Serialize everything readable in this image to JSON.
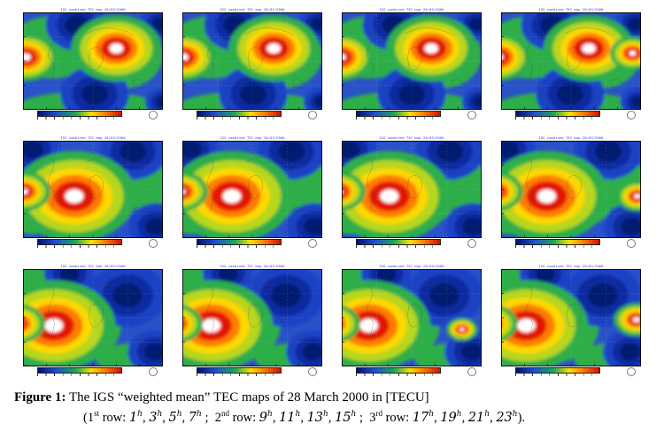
{
  "page": {
    "background": "#ffffff"
  },
  "figure": {
    "panel_header": "IGS combined TEC map  28/03/2000",
    "caption": {
      "label": "Figure 1:",
      "text": " The IGS “weighted mean” TEC maps of 28 March 2000 in [TECU]",
      "row_word": "row:",
      "hour_unit": "h",
      "rows": [
        {
          "ordinal": "1",
          "suffix": "st",
          "hours": [
            "1",
            "3",
            "5",
            "7"
          ],
          "terminator": ";"
        },
        {
          "ordinal": "2",
          "suffix": "nd",
          "hours": [
            "9",
            "11",
            "13",
            "15"
          ],
          "terminator": ";"
        },
        {
          "ordinal": "3",
          "suffix": "rd",
          "hours": [
            "17",
            "19",
            "21",
            "23"
          ],
          "terminator": "."
        }
      ]
    }
  },
  "chart_data": {
    "type": "heatmap",
    "title": "IGS weighted mean TEC maps of 28 March 2000",
    "unit": "TECU",
    "layout": {
      "rows": 3,
      "cols": 4
    },
    "panel_hours_UT": [
      1,
      3,
      5,
      7,
      9,
      11,
      13,
      15,
      17,
      19,
      21,
      23
    ],
    "colorbar_orientation": "horizontal",
    "colorbar_colors": [
      "#001070",
      "#2050d0",
      "#18a858",
      "#ffe000",
      "#ff8000",
      "#d01000"
    ],
    "value_colors": {
      "low": "#051a70",
      "base": "#2a52c8",
      "mid": "#2fae4a",
      "high": "#e11400",
      "peak": "#ffffff"
    }
  }
}
